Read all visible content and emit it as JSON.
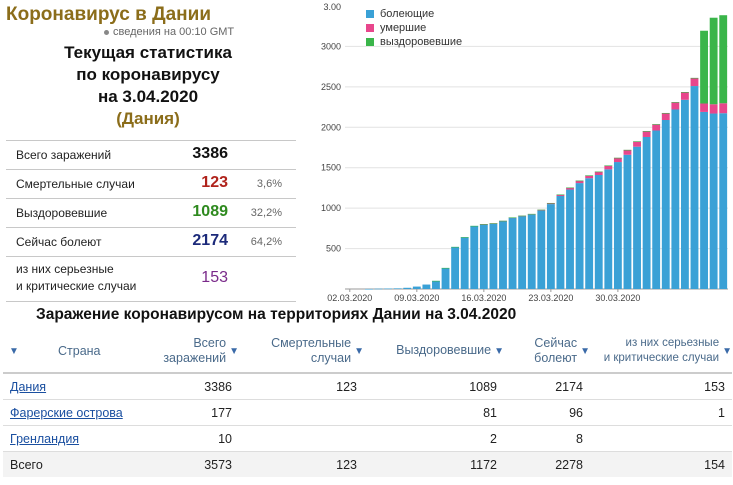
{
  "header": {
    "title": "Коронавирус в Дании",
    "updated": "сведения на 00:10 GMT",
    "heading_line1": "Текущая статистика",
    "heading_line2": "по коронавирусу",
    "heading_line3": "на 3.04.2020",
    "heading_country": "(Дания)"
  },
  "stats": [
    {
      "label": "Всего заражений",
      "value": "3386",
      "pct": "",
      "color": "#111111"
    },
    {
      "label": "Смертельные случаи",
      "value": "123",
      "pct": "3,6%",
      "color": "#b0231c"
    },
    {
      "label": "Выздоровевшие",
      "value": "1089",
      "pct": "32,2%",
      "color": "#2f8a1f"
    },
    {
      "label": "Сейчас болеют",
      "value": "2174",
      "pct": "64,2%",
      "color": "#1c2a7a"
    },
    {
      "label_line1": "из них серьезные",
      "label_line2": "и критические случаи",
      "value": "153",
      "pct": "",
      "color": "#7a2a8a"
    }
  ],
  "chart_data": {
    "type": "bar",
    "stacked": true,
    "ylim": [
      0,
      3500
    ],
    "yticks": [
      500,
      1000,
      1500,
      2000,
      2500,
      3000
    ],
    "ytick_labels": [
      "500",
      "1000",
      "1500",
      "2000",
      "2500",
      "3000"
    ],
    "top_label": "3.00",
    "xtick_labels": [
      "02.03.2020",
      "09.03.2020",
      "16.03.2020",
      "23.03.2020",
      "30.03.2020"
    ],
    "xtick_index": [
      0,
      7,
      14,
      21,
      28
    ],
    "legend_position": "top-left",
    "series": [
      {
        "name": "болеющие",
        "color": "#3aa1d6",
        "values": [
          0,
          0,
          1,
          4,
          6,
          8,
          15,
          30,
          55,
          100,
          260,
          520,
          640,
          780,
          800,
          810,
          840,
          880,
          900,
          920,
          970,
          1050,
          1150,
          1230,
          1310,
          1370,
          1410,
          1480,
          1570,
          1660,
          1760,
          1880,
          1960,
          2090,
          2220,
          2340,
          2510,
          2190,
          2170,
          2174
        ]
      },
      {
        "name": "умершие",
        "color": "#e8468c",
        "values": [
          0,
          0,
          0,
          0,
          0,
          0,
          0,
          0,
          0,
          0,
          0,
          0,
          0,
          0,
          1,
          2,
          3,
          4,
          6,
          8,
          10,
          13,
          18,
          24,
          30,
          34,
          41,
          47,
          52,
          60,
          65,
          72,
          77,
          86,
          90,
          95,
          100,
          104,
          115,
          123
        ]
      },
      {
        "name": "выздоровевшие",
        "color": "#3ab54a",
        "values": [
          0,
          0,
          0,
          0,
          0,
          0,
          0,
          0,
          0,
          1,
          1,
          1,
          1,
          1,
          1,
          1,
          1,
          1,
          1,
          1,
          1,
          1,
          1,
          1,
          1,
          1,
          1,
          1,
          1,
          1,
          1,
          1,
          1,
          1,
          1,
          1,
          1,
          900,
          1070,
          1089
        ]
      }
    ]
  },
  "table": {
    "title": "Заражение коронавирусом на территориях Дании на 3.04.2020",
    "columns": [
      {
        "line1": "Страна",
        "line2": ""
      },
      {
        "line1": "Всего",
        "line2": "заражений"
      },
      {
        "line1": "Смертельные",
        "line2": "случаи"
      },
      {
        "line1": "Выздоровевшие",
        "line2": ""
      },
      {
        "line1": "Сейчас",
        "line2": "болеют"
      },
      {
        "line1": "из них серьезные",
        "line2": "и критические случаи"
      }
    ],
    "rows": [
      {
        "country": "Дания",
        "total": "3386",
        "deaths": "123",
        "recovered": "1089",
        "active": "2174",
        "serious": "153"
      },
      {
        "country": "Фарерские острова",
        "total": "177",
        "deaths": "",
        "recovered": "81",
        "active": "96",
        "serious": "1"
      },
      {
        "country": "Гренландия",
        "total": "10",
        "deaths": "",
        "recovered": "2",
        "active": "8",
        "serious": ""
      }
    ],
    "total_row": {
      "country": "Всего",
      "total": "3573",
      "deaths": "123",
      "recovered": "1172",
      "active": "2278",
      "serious": "154"
    }
  }
}
